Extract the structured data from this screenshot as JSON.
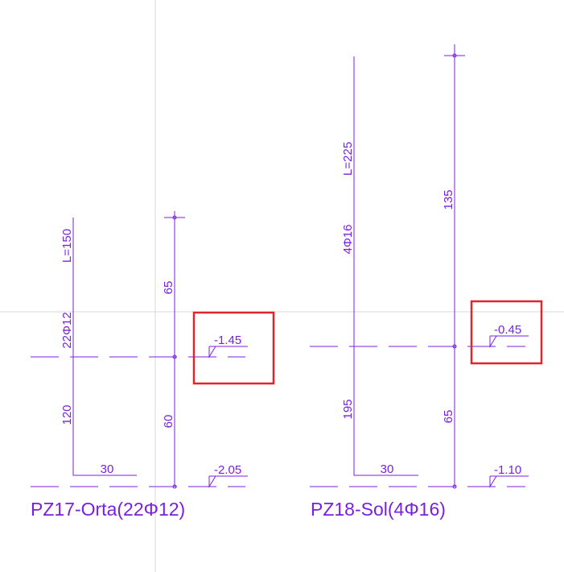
{
  "details": [
    {
      "title": "PZ17-Orta(22Φ12)",
      "length_label": "L=150",
      "count_label": "22Φ12",
      "lower_label": "120",
      "upper_dim": "65",
      "lower_dim": "60",
      "hook_label": "30",
      "level_label": "-1.45",
      "base_level_label": "-2.05"
    },
    {
      "title": "PZ18-Sol(4Φ16)",
      "length_label": "L=225",
      "count_label": "4Φ16",
      "lower_label": "195",
      "upper_dim": "135",
      "lower_dim": "65",
      "hook_label": "30",
      "level_label": "-0.45",
      "base_level_label": "-1.10"
    }
  ]
}
